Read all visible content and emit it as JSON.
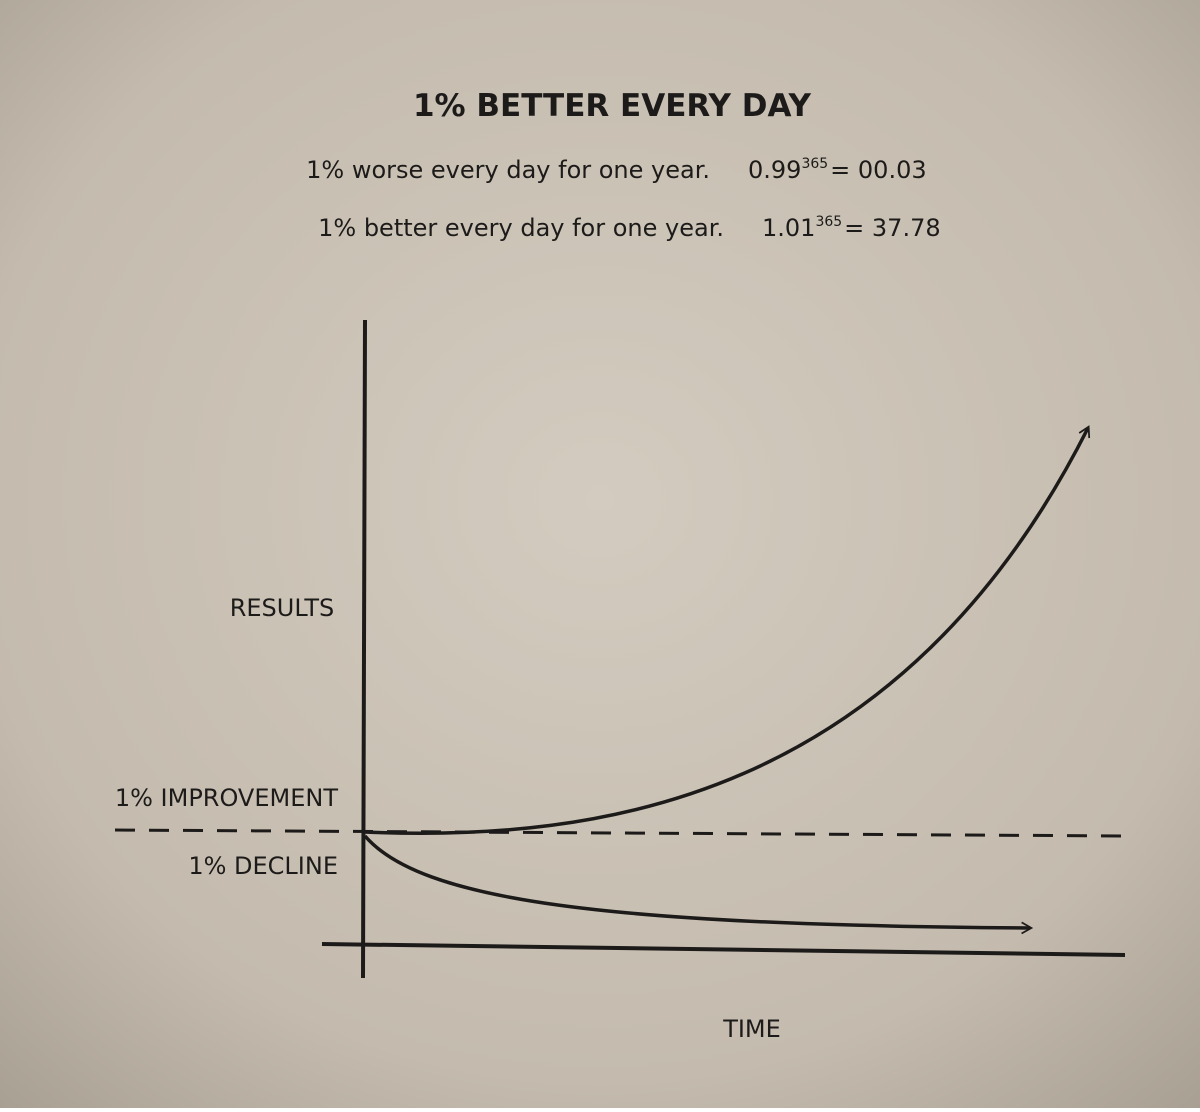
{
  "header": {
    "title": "1% BETTER EVERY DAY"
  },
  "formulas": [
    {
      "text": "1% worse every day for one year.",
      "base": "0.99",
      "exponent": "365",
      "result": "= 00.03"
    },
    {
      "text": "1% better every day for one year.",
      "base": "1.01",
      "exponent": "365",
      "result": "= 37.78"
    }
  ],
  "diagram": {
    "y_label": "RESULTS",
    "improvement_label": "1% IMPROVEMENT",
    "decline_label": "1% DECLINE",
    "x_label": "TIME"
  }
}
